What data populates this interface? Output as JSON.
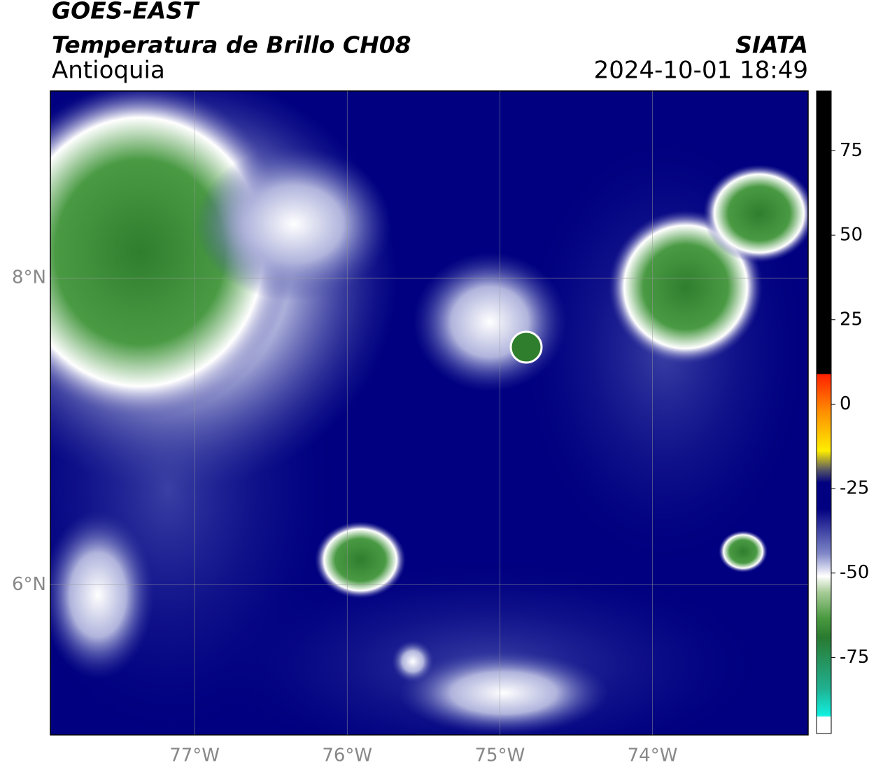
{
  "header": {
    "title": "GOES-EAST",
    "subtitle": "Temperatura de Brillo CH08",
    "region": "Antioquia",
    "source": "SIATA",
    "datetime": "2024-10-01 18:49"
  },
  "map": {
    "lonlim": [
      -77.945,
      -72.98
    ],
    "latlim": [
      5.02,
      9.22
    ],
    "lonticks": [
      {
        "value": -77,
        "label": "77°W"
      },
      {
        "value": -76,
        "label": "76°W"
      },
      {
        "value": -75,
        "label": "75°W"
      },
      {
        "value": -74,
        "label": "74°W"
      }
    ],
    "latticks": [
      {
        "value": 8,
        "label": "8°N"
      },
      {
        "value": 6,
        "label": "6°N"
      }
    ]
  },
  "colorbar": {
    "lim": [
      -97.5,
      92.7
    ],
    "ticks": [
      75,
      50,
      25,
      0,
      -25,
      -50,
      -75
    ]
  }
}
